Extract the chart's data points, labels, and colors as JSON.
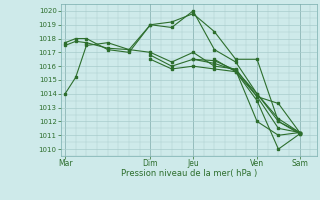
{
  "xlabel": "Pression niveau de la mer( hPa )",
  "bg_color": "#ceeaea",
  "grid_color": "#a8cccc",
  "line_color": "#2d6e2d",
  "ylim": [
    1009.5,
    1020.5
  ],
  "xlim": [
    -0.2,
    11.8
  ],
  "xtick_labels": [
    "Mar",
    "",
    "Dim",
    "Jeu",
    "",
    "",
    "Ven",
    "",
    "",
    "Sam"
  ],
  "xtick_positions": [
    0,
    2,
    4,
    6,
    7,
    8,
    9,
    10,
    11,
    12
  ],
  "day_xtick_labels": [
    "Mar",
    "Dim",
    "Jeu",
    "Ven",
    "Sam"
  ],
  "day_xtick_pos": [
    0,
    4,
    6,
    9,
    11.5
  ],
  "ytick_values": [
    1010,
    1011,
    1012,
    1013,
    1014,
    1015,
    1016,
    1017,
    1018,
    1019,
    1020
  ],
  "series": [
    {
      "x": [
        0,
        0.5,
        1.0,
        2.0,
        3.0,
        4.0,
        5.0,
        6.0,
        7.0,
        8.0,
        9.0,
        10.0,
        11.0
      ],
      "y": [
        1014.0,
        1015.2,
        1017.5,
        1017.7,
        1017.2,
        1017.0,
        1016.3,
        1017.0,
        1016.0,
        1015.8,
        1013.8,
        1013.3,
        1011.2
      ]
    },
    {
      "x": [
        0,
        0.5,
        1.0,
        2.0,
        3.0,
        4.0,
        5.0,
        6.0,
        7.0,
        8.0,
        9.0,
        10.0,
        11.0
      ],
      "y": [
        1017.7,
        1018.0,
        1018.0,
        1017.2,
        1017.0,
        1019.0,
        1019.2,
        1019.8,
        1018.5,
        1016.5,
        1016.5,
        1012.0,
        1011.2
      ]
    },
    {
      "x": [
        0,
        0.5,
        1.0,
        2.0,
        3.0,
        4.0,
        5.0,
        6.0,
        7.0,
        8.0,
        9.0,
        10.0,
        11.0
      ],
      "y": [
        1017.5,
        1017.8,
        1017.7,
        1017.3,
        1017.2,
        1019.0,
        1018.8,
        1020.0,
        1017.2,
        1016.3,
        1014.0,
        1012.2,
        1011.2
      ]
    },
    {
      "x": [
        4.0,
        5.0,
        6.0,
        7.0,
        8.0,
        9.0,
        10.0,
        11.0
      ],
      "y": [
        1016.5,
        1015.8,
        1016.0,
        1015.8,
        1015.6,
        1013.5,
        1010.0,
        1011.1
      ]
    },
    {
      "x": [
        4.0,
        5.0,
        6.0,
        7.0,
        8.0,
        9.0,
        10.0,
        11.0
      ],
      "y": [
        1016.8,
        1016.0,
        1016.5,
        1016.2,
        1015.7,
        1012.0,
        1011.0,
        1011.2
      ]
    },
    {
      "x": [
        6.0,
        7.0,
        8.0,
        9.0,
        10.0,
        11.0
      ],
      "y": [
        1016.5,
        1016.4,
        1015.7,
        1014.0,
        1012.0,
        1011.1
      ]
    },
    {
      "x": [
        7.0,
        8.0,
        9.0,
        10.0,
        11.0
      ],
      "y": [
        1016.5,
        1015.6,
        1013.8,
        1011.5,
        1011.2
      ]
    }
  ],
  "vlines_x": [
    0,
    4,
    6,
    9,
    11
  ],
  "vlines_color": "#7aafaf"
}
